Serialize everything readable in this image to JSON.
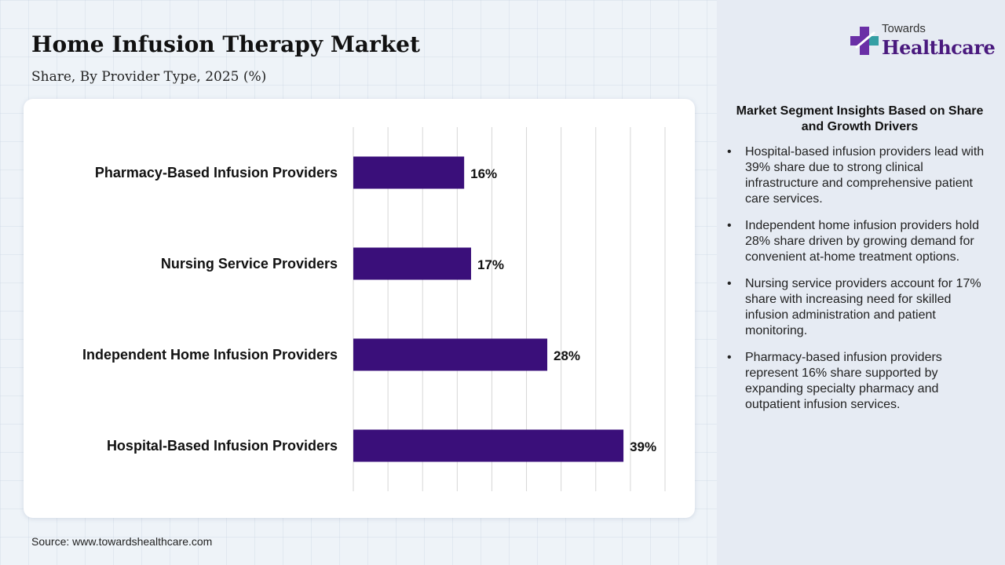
{
  "header": {
    "title": "Home Infusion Therapy Market",
    "subtitle": "Share, By Provider Type, 2025 (%)"
  },
  "chart_data": {
    "type": "bar",
    "orientation": "horizontal",
    "categories": [
      "Pharmacy-Based Infusion Providers",
      "Nursing Service Providers",
      "Independent Home Infusion Providers",
      "Hospital-Based Infusion Providers"
    ],
    "values": [
      16,
      17,
      28,
      39
    ],
    "data_labels": [
      "16%",
      "17%",
      "28%",
      "39%"
    ],
    "xlim": [
      0,
      45
    ],
    "grid": true,
    "x_axis_labels_shown": false,
    "bar_color": "#3a0f7a"
  },
  "source": "Source: www.towardshealthcare.com",
  "logo": {
    "line1": "Towards",
    "line2": "Healthcare"
  },
  "insights": {
    "title": "Market Segment Insights Based on Share and Growth Drivers",
    "items": [
      "Hospital-based infusion providers lead with 39% share due to strong clinical infrastructure and comprehensive patient care services.",
      "Independent home infusion providers hold 28% share driven by growing demand for convenient at-home treatment options.",
      "Nursing service providers account for 17% share with increasing need for skilled infusion administration and patient monitoring.",
      "Pharmacy-based infusion providers represent 16% share supported by expanding specialty pharmacy and outpatient infusion services."
    ]
  },
  "colors": {
    "bar": "#3a0f7a",
    "grid": "#d6d6d6",
    "brand": "#4a1a7e",
    "panel": "#e6ebf3"
  }
}
